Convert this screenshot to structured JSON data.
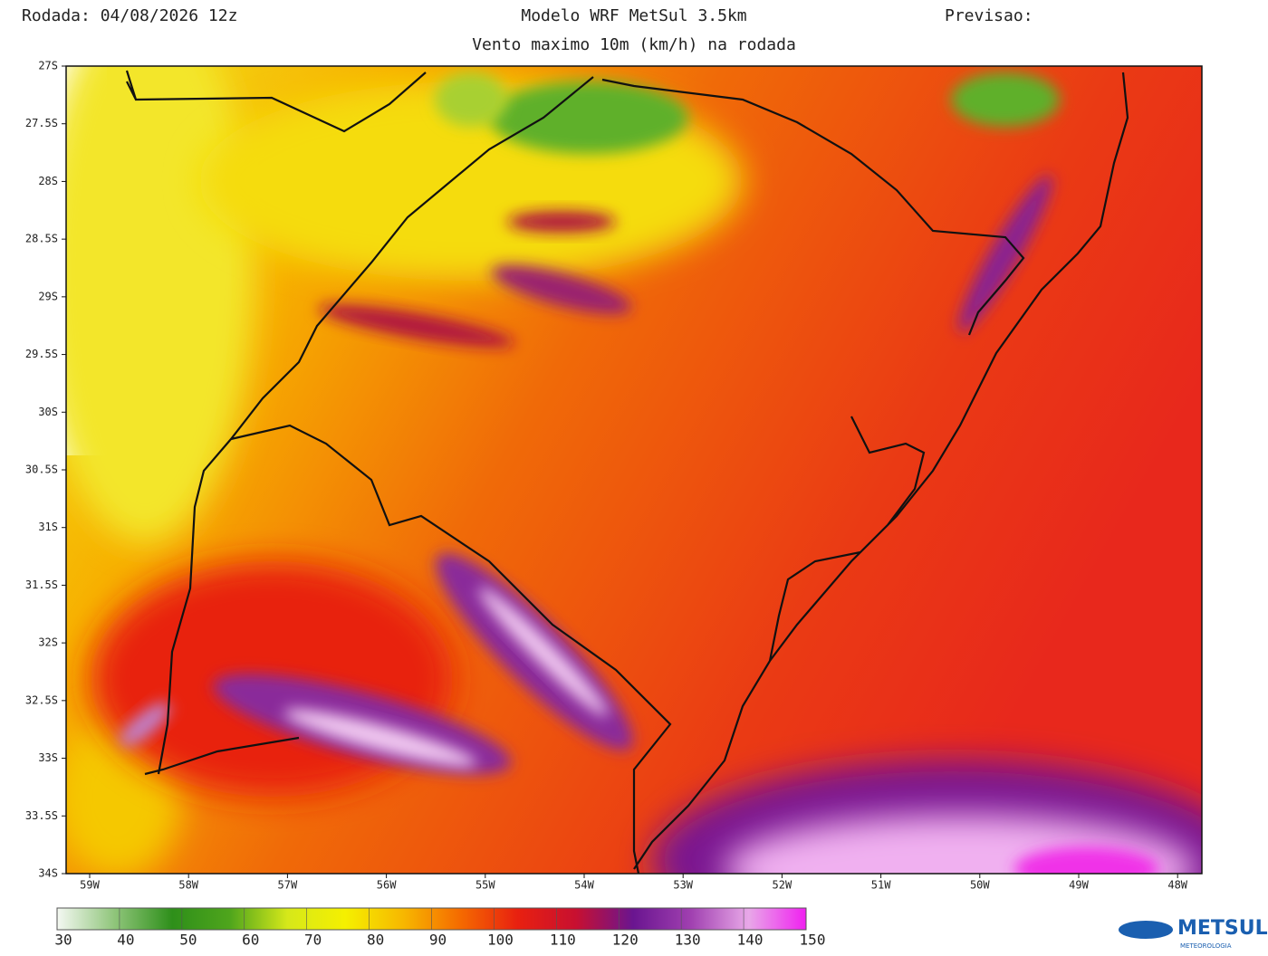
{
  "header": {
    "left": "Rodada: 04/08/2026 12z",
    "center": "Modelo WRF MetSul 3.5km",
    "right": "Previsao:",
    "subtitle": "Vento maximo 10m (km/h) na rodada"
  },
  "map": {
    "lat_labels": [
      "27S",
      "27.5S",
      "28S",
      "28.5S",
      "29S",
      "29.5S",
      "30S",
      "30.5S",
      "31S",
      "31.5S",
      "32S",
      "32.5S",
      "33S",
      "33.5S",
      "34S"
    ],
    "lon_labels": [
      "59W",
      "58W",
      "57W",
      "56W",
      "55W",
      "54W",
      "53W",
      "52W",
      "51W",
      "50W",
      "49W",
      "48W"
    ]
  },
  "colorbar": {
    "ticks": [
      30,
      40,
      50,
      60,
      70,
      80,
      90,
      100,
      110,
      120,
      130,
      140,
      150
    ],
    "colors": [
      "#f4f8f2",
      "#8fc57a",
      "#2e8f1a",
      "#4fa51c",
      "#d6e81a",
      "#f5f000",
      "#f7b800",
      "#f56a00",
      "#e82010",
      "#c81030",
      "#6a1590",
      "#a040b0",
      "#e8a8e8",
      "#f020f0"
    ]
  },
  "logo": {
    "name": "METSUL",
    "tagline": "METEOROLOGIA"
  }
}
